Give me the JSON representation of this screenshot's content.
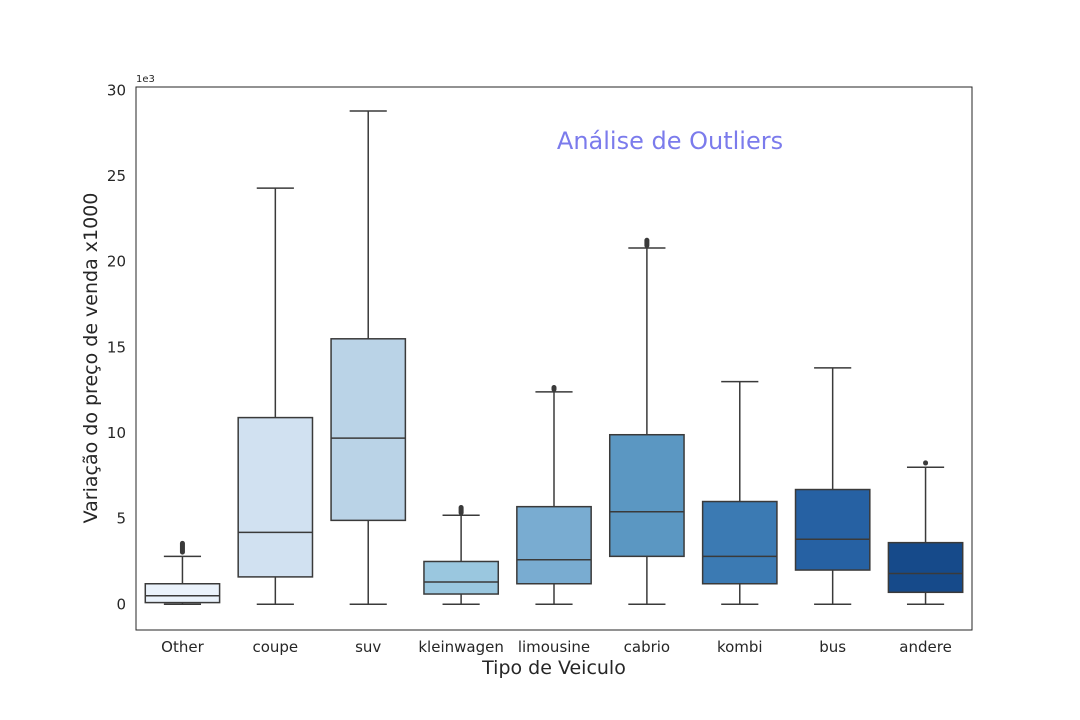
{
  "chart_data": {
    "type": "boxplot",
    "title": "",
    "annotation": "Análise de Outliers",
    "annotation_color": "#7b7bec",
    "xlabel": "Tipo de Veiculo",
    "ylabel": "Variação do preço de venda x1000",
    "y_offset_label": "1e3",
    "ylim": [
      -1.5,
      30.2
    ],
    "yticks": [
      0,
      5,
      10,
      15,
      20,
      25,
      30
    ],
    "grid": false,
    "categories": [
      "Other",
      "coupe",
      "suv",
      "kleinwagen",
      "limousine",
      "cabrio",
      "kombi",
      "bus",
      "andere"
    ],
    "boxes": [
      {
        "category": "Other",
        "whisker_low": 0,
        "q1": 0.1,
        "median": 0.5,
        "q3": 1.2,
        "whisker_high": 2.8,
        "outliers_from": 2.9,
        "outliers_to": 3.7,
        "color": "#eaf2fb"
      },
      {
        "category": "coupe",
        "whisker_low": 0,
        "q1": 1.6,
        "median": 4.2,
        "q3": 10.9,
        "whisker_high": 24.3,
        "color": "#d1e1f1"
      },
      {
        "category": "suv",
        "whisker_low": 0,
        "q1": 4.9,
        "median": 9.7,
        "q3": 15.5,
        "whisker_high": 28.8,
        "color": "#bad3e7"
      },
      {
        "category": "kleinwagen",
        "whisker_low": 0,
        "q1": 0.6,
        "median": 1.3,
        "q3": 2.5,
        "whisker_high": 5.2,
        "outliers_from": 5.2,
        "outliers_to": 5.8,
        "color": "#9ac7df"
      },
      {
        "category": "limousine",
        "whisker_low": 0,
        "q1": 1.2,
        "median": 2.6,
        "q3": 5.7,
        "whisker_high": 12.4,
        "outliers_from": 12.4,
        "outliers_to": 12.8,
        "color": "#79acd1"
      },
      {
        "category": "cabrio",
        "whisker_low": 0,
        "q1": 2.8,
        "median": 5.4,
        "q3": 9.9,
        "whisker_high": 20.8,
        "outliers_from": 20.8,
        "outliers_to": 21.4,
        "color": "#5b97c2"
      },
      {
        "category": "kombi",
        "whisker_low": 0,
        "q1": 1.2,
        "median": 2.8,
        "q3": 6.0,
        "whisker_high": 13.0,
        "color": "#3b7ab3"
      },
      {
        "category": "bus",
        "whisker_low": 0,
        "q1": 2.0,
        "median": 3.8,
        "q3": 6.7,
        "whisker_high": 13.8,
        "color": "#2661a3"
      },
      {
        "category": "andere",
        "whisker_low": 0,
        "q1": 0.7,
        "median": 1.8,
        "q3": 3.6,
        "whisker_high": 8.0,
        "outliers_from": 8.1,
        "outliers_to": 8.4,
        "color": "#164a8a"
      }
    ]
  }
}
